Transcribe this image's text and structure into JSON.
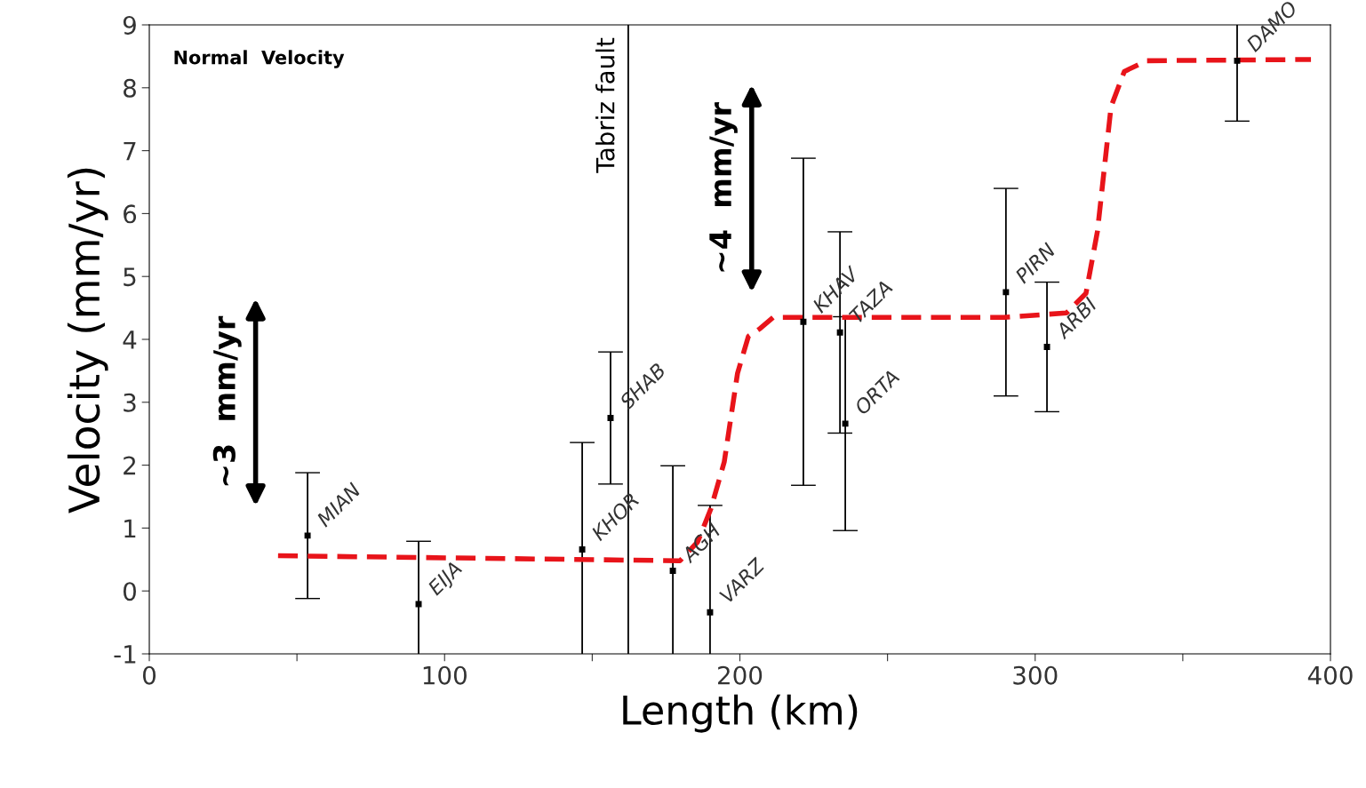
{
  "chart_data": {
    "type": "scatter",
    "xlabel": "Length (km)",
    "ylabel": "Velocity (mm/yr)",
    "xlim": [
      0,
      400
    ],
    "xticks": [
      0,
      {
        "value": 50,
        "label": null
      },
      100,
      {
        "value": 150,
        "label": null
      },
      200,
      {
        "value": 250,
        "label": null
      },
      300,
      {
        "value": 350,
        "label": null
      },
      400
    ],
    "ylim": [
      -1,
      9
    ],
    "yticks": [
      -1,
      0,
      1,
      2,
      3,
      4,
      5,
      6,
      7,
      8,
      9
    ],
    "grid": false,
    "marker": "square",
    "x": [
      53.6,
      91.2,
      146.6,
      156.2,
      177.3,
      189.9,
      221.5,
      233.9,
      235.7,
      290.1,
      304.0,
      368.4
    ],
    "series": [
      {
        "color": "#000000",
        "values": [
          0.88,
          -0.21,
          0.66,
          2.75,
          0.32,
          -0.34,
          4.28,
          4.11,
          2.66,
          4.75,
          3.88,
          8.43
        ],
        "errors": [
          1.0,
          1.0,
          1.7,
          1.05,
          1.67,
          1.7,
          2.6,
          1.6,
          1.7,
          1.65,
          1.03,
          0.96
        ]
      },
      {
        "type": "line",
        "color": "#e8141a",
        "line_style": "dashed",
        "marker": "none",
        "x": [
          43.6,
          179.7,
          185.7,
          190.2,
          194.7,
          199.2,
          202.9,
          206.8,
          211.3,
          289.5,
          310.6,
          317.2,
          321.1,
          325.7,
          330.2,
          337.7,
          393.4
        ],
        "values": [
          0.56,
          0.48,
          0.78,
          1.31,
          2.05,
          3.46,
          4.05,
          4.17,
          4.35,
          4.35,
          4.42,
          4.73,
          5.72,
          7.7,
          8.26,
          8.43,
          8.45
        ]
      }
    ],
    "ref_lines": [
      {
        "axis": "x",
        "value": 162.2,
        "label": "Tabriz fault",
        "color": "#000000"
      }
    ],
    "annotations": [
      "Normal  Velocity",
      {
        "text": "MIAN",
        "x": 53.6,
        "y": 0.88
      },
      {
        "text": "EIJA",
        "x": 91.2,
        "y": -0.21
      },
      {
        "text": "KHOR",
        "x": 146.6,
        "y": 0.66
      },
      {
        "text": "SHAB",
        "x": 156.2,
        "y": 2.75
      },
      {
        "text": "AGH",
        "x": 177.3,
        "y": 0.32
      },
      {
        "text": "VARZ",
        "x": 189.9,
        "y": -0.34
      },
      {
        "text": "KHAV",
        "x": 221.5,
        "y": 4.28
      },
      {
        "text": "TAZA",
        "x": 233.9,
        "y": 4.11
      },
      {
        "text": "ORTA",
        "x": 235.7,
        "y": 2.66
      },
      {
        "text": "PIRN",
        "x": 290.1,
        "y": 4.75
      },
      {
        "text": "ARBI",
        "x": 304.0,
        "y": 3.88
      },
      {
        "text": "DAMO",
        "x": 368.4,
        "y": 8.43
      },
      "~3  mm/yr",
      "~4  mm/yr"
    ]
  }
}
